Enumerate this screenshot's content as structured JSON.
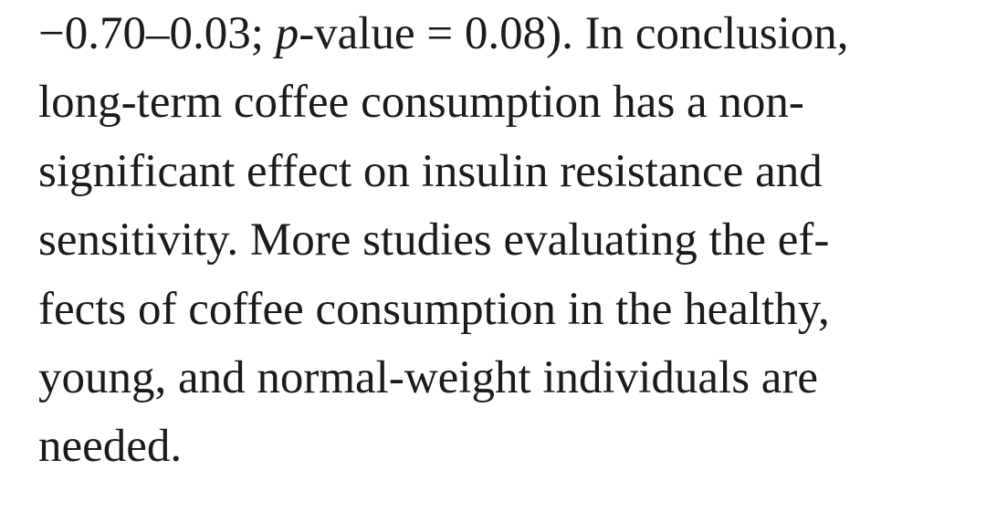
{
  "paragraph": {
    "lines": [
      {
        "part_a": "−0.70–0.03; ",
        "part_italic": "p",
        "part_b": "-value = 0.08). In conclusion,"
      },
      "long-term coffee consumption has a non-",
      "significant effect on insulin resistance and",
      "sensitivity. More studies evaluating the ef-",
      "fects of coffee consumption in the healthy,",
      "young, and normal-weight individuals are",
      "needed."
    ]
  }
}
